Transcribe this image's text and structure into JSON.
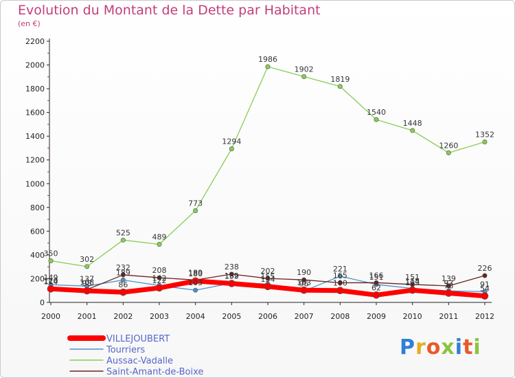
{
  "header": {
    "title": "Evolution du Montant de la Dette par Habitant",
    "unit": "(en €)"
  },
  "brand": {
    "logo_text": "Proxiti"
  },
  "chart_data": {
    "type": "line",
    "x": [
      "2000",
      "2001",
      "2002",
      "2003",
      "2004",
      "2005",
      "2006",
      "2007",
      "2008",
      "2009",
      "2010",
      "2011",
      "2012"
    ],
    "ylim": [
      0,
      2200
    ],
    "yticks": [
      0,
      200,
      400,
      600,
      800,
      1000,
      1200,
      1400,
      1600,
      1800,
      2000,
      2200
    ],
    "grid": false,
    "legend_position": "bottom-left",
    "series": [
      {
        "name": "VILLEJOUBERT",
        "color": "#ff0000",
        "values": [
          114,
          98,
          86,
          122,
          180,
          159,
          134,
          103,
          100,
          62,
          103,
          78,
          54
        ],
        "labels": [
          "114",
          "98",
          "86",
          "122",
          "180",
          "159",
          "134",
          "103",
          "100",
          "62",
          "103",
          "78",
          "54"
        ]
      },
      {
        "name": "Tourriers",
        "color": "#4b90c9",
        "values": [
          149,
          137,
          189,
          142,
          103,
          162,
          155,
          96,
          221,
          151,
          118,
          97,
          91
        ],
        "labels": [
          "149",
          "137",
          "189",
          "142",
          "103",
          "162",
          "155",
          "96",
          "221",
          "151",
          "118",
          "97",
          "91"
        ]
      },
      {
        "name": "Aussac-Vadalle",
        "color": "#88cc55",
        "values": [
          350,
          302,
          525,
          489,
          773,
          1294,
          1986,
          1902,
          1819,
          1540,
          1448,
          1260,
          1352
        ],
        "labels": [
          "350",
          "302",
          "525",
          "489",
          "773",
          "1294",
          "1986",
          "1902",
          "1819",
          "1540",
          "1448",
          "1260",
          "1352"
        ]
      },
      {
        "name": "Saint-Amant-de-Boixe",
        "color": "#6b2222",
        "values": [
          120,
          108,
          232,
          208,
          189,
          238,
          202,
          190,
          165,
          166,
          151,
          139,
          226
        ],
        "labels": [
          "120",
          "108",
          "232",
          "208",
          "189",
          "238",
          "202",
          "190",
          "165",
          "166",
          "151",
          "139",
          "226"
        ]
      }
    ]
  }
}
